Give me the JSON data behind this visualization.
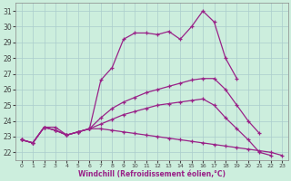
{
  "xlabel": "Windchill (Refroidissement éolien,°C)",
  "bg_color": "#cceedd",
  "line_color": "#992288",
  "grid_color": "#aacccc",
  "x": [
    0,
    1,
    2,
    3,
    4,
    5,
    6,
    7,
    8,
    9,
    10,
    11,
    12,
    13,
    14,
    15,
    16,
    17,
    18,
    19,
    20,
    21,
    22,
    23
  ],
  "series": {
    "s1": [
      22.8,
      22.6,
      23.6,
      23.6,
      23.1,
      23.3,
      23.5,
      26.6,
      27.4,
      29.2,
      29.6,
      29.6,
      29.5,
      29.7,
      29.2,
      30.0,
      31.0,
      30.3,
      28.0,
      26.7,
      null,
      null,
      null,
      null
    ],
    "s2": [
      22.8,
      22.6,
      23.6,
      23.4,
      23.1,
      23.3,
      23.5,
      24.2,
      24.8,
      25.2,
      25.5,
      25.8,
      26.0,
      26.2,
      26.4,
      26.6,
      26.7,
      26.7,
      26.0,
      25.0,
      24.0,
      23.2,
      null,
      null
    ],
    "s3": [
      22.8,
      22.6,
      23.6,
      23.4,
      23.1,
      23.3,
      23.5,
      23.8,
      24.1,
      24.4,
      24.6,
      24.8,
      25.0,
      25.1,
      25.2,
      25.3,
      25.4,
      25.0,
      24.2,
      23.5,
      22.8,
      22.0,
      21.8,
      null
    ],
    "s4": [
      22.8,
      22.6,
      23.6,
      23.4,
      23.1,
      23.3,
      23.5,
      23.5,
      23.4,
      23.3,
      23.2,
      23.1,
      23.0,
      22.9,
      22.8,
      22.7,
      22.6,
      22.5,
      22.4,
      22.3,
      22.2,
      22.1,
      22.0,
      21.8
    ]
  },
  "ylim": [
    21.5,
    31.5
  ],
  "yticks": [
    22,
    23,
    24,
    25,
    26,
    27,
    28,
    29,
    30,
    31
  ],
  "xlim": [
    -0.5,
    23.5
  ],
  "xticks": [
    0,
    1,
    2,
    3,
    4,
    5,
    6,
    7,
    8,
    9,
    10,
    11,
    12,
    13,
    14,
    15,
    16,
    17,
    18,
    19,
    20,
    21,
    22,
    23
  ]
}
